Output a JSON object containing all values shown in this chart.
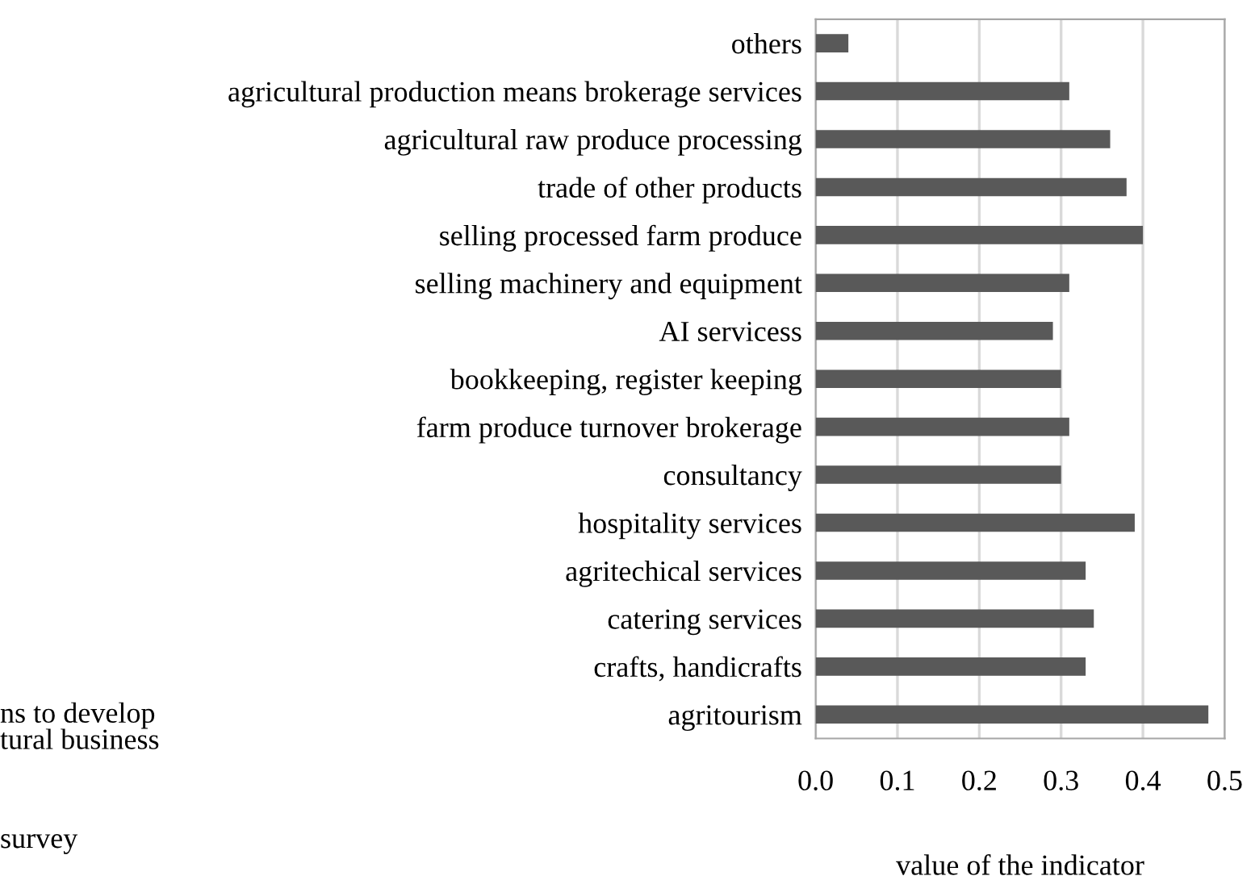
{
  "chart_data": {
    "type": "bar",
    "orientation": "horizontal",
    "xlabel": "value of the indicator",
    "categories": [
      "others",
      "agricultural production means brokerage services",
      "agricultural raw produce processing",
      "trade of other products",
      "selling processed farm produce",
      "selling machinery and equipment",
      "AI servicess",
      "bookkeeping, register keeping",
      "farm produce turnover brokerage",
      "consultancy",
      "hospitality services",
      "agritechical services",
      "catering services",
      "crafts, handicrafts",
      "agritourism"
    ],
    "values": [
      0.04,
      0.31,
      0.36,
      0.38,
      0.4,
      0.31,
      0.29,
      0.3,
      0.31,
      0.3,
      0.39,
      0.33,
      0.34,
      0.33,
      0.48
    ],
    "color": "#595959",
    "xlim": [
      0,
      0.5
    ],
    "xticks": [
      {
        "value": 0,
        "label": "0.0"
      },
      0.1,
      0.2,
      0.3,
      0.4,
      0.5
    ],
    "grid": "x",
    "annotations": [
      "ns to develop\ntural business",
      "survey"
    ]
  }
}
